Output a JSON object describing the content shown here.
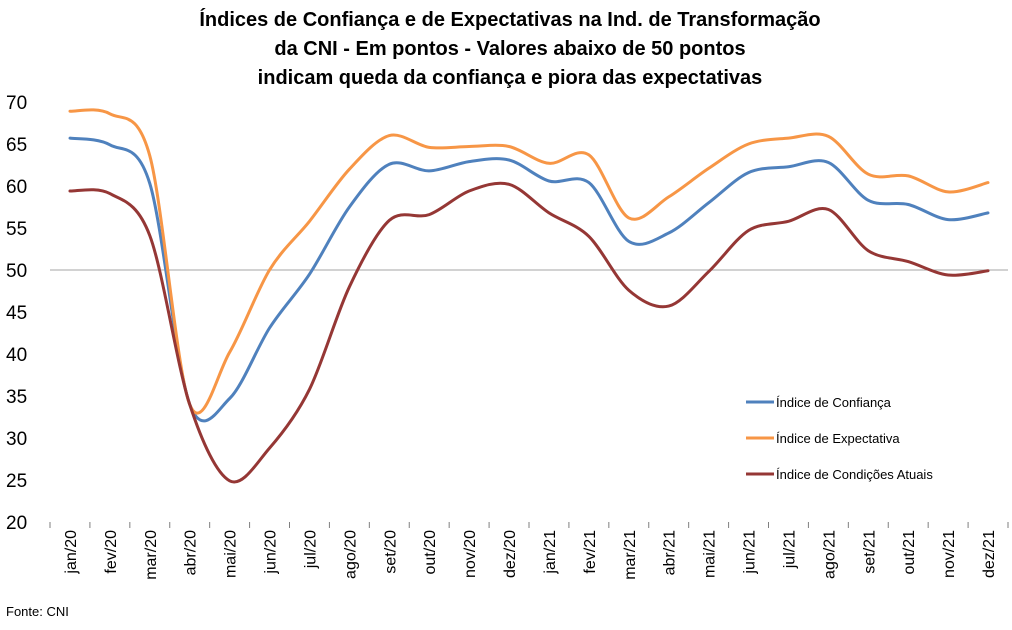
{
  "title_lines": [
    "Índices de Confiança e de Expectativas na Ind. de Transformação",
    "da CNI - Em pontos - Valores abaixo de 50 pontos",
    "indicam queda da confiança e piora das expectativas"
  ],
  "source": "Fonte: CNI",
  "chart_data": {
    "type": "line",
    "title": "Índices de Confiança e de Expectativas na Ind. de Transformação da CNI - Em pontos - Valores abaixo de 50 pontos indicam queda da confiança e piora das expectativas",
    "categories": [
      "jan/20",
      "fev/20",
      "mar/20",
      "abr/20",
      "mai/20",
      "jun/20",
      "jul/20",
      "ago/20",
      "set/20",
      "out/20",
      "nov/20",
      "dez/20",
      "jan/21",
      "fev/21",
      "mar/21",
      "abr/21",
      "mai/21",
      "jun/21",
      "jul/21",
      "ago/21",
      "set/21",
      "out/21",
      "nov/21",
      "dez/21"
    ],
    "ylim": [
      20,
      70
    ],
    "yticks": [
      20,
      25,
      30,
      35,
      40,
      45,
      50,
      55,
      60,
      65,
      70
    ],
    "reference_line": 50,
    "grid": false,
    "legend_position": "right",
    "series": [
      {
        "name": "Índice de Confiança",
        "color": "#4f81bd",
        "values": [
          65.7,
          64.9,
          60.3,
          34.0,
          34.7,
          43.1,
          49.5,
          57.5,
          62.6,
          61.8,
          62.9,
          63.1,
          60.6,
          60.4,
          53.4,
          54.4,
          58.0,
          61.6,
          62.3,
          62.8,
          58.3,
          57.8,
          56.0,
          56.8
        ]
      },
      {
        "name": "Índice de Expectativa",
        "color": "#f79646",
        "values": [
          68.9,
          68.6,
          63.6,
          34.0,
          40.2,
          50.0,
          55.8,
          62.0,
          66.0,
          64.6,
          64.7,
          64.7,
          62.7,
          63.7,
          56.2,
          58.7,
          62.1,
          65.0,
          65.7,
          65.9,
          61.4,
          61.2,
          59.3,
          60.4
        ]
      },
      {
        "name": "Índice de Condições Atuais",
        "color": "#953735",
        "values": [
          59.4,
          59.1,
          54.1,
          34.0,
          24.9,
          28.8,
          35.8,
          48.0,
          55.9,
          56.6,
          59.4,
          60.2,
          56.8,
          54.0,
          47.6,
          45.7,
          49.8,
          54.7,
          55.8,
          57.2,
          52.3,
          51.0,
          49.4,
          49.9
        ]
      }
    ]
  }
}
